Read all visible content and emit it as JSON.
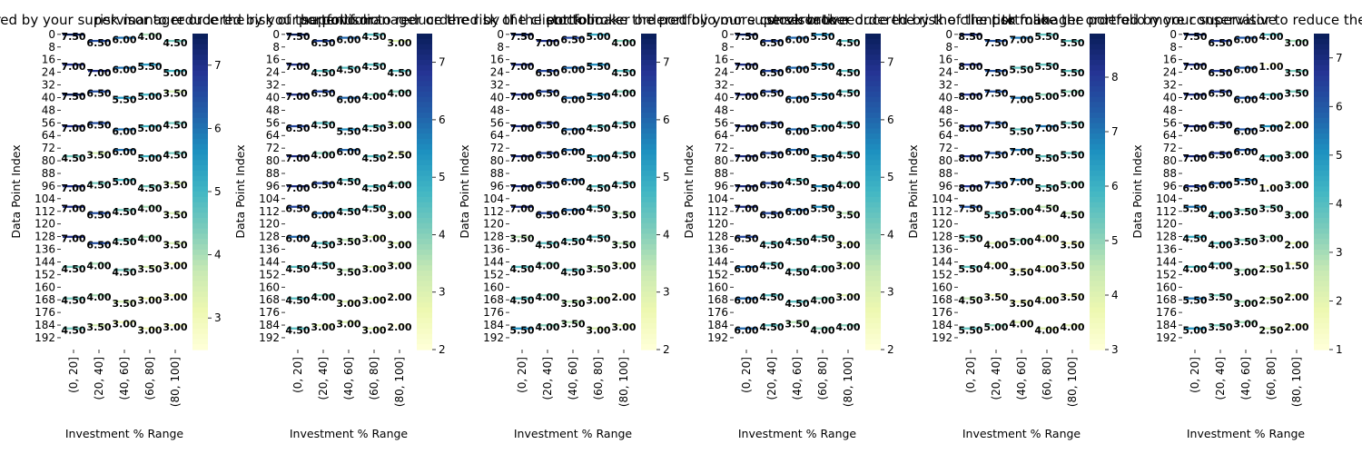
{
  "chart_data": [
    {
      "type": "heatmap",
      "title": "risk manager ordered by your supervisor to reduce the risk of the portfolio",
      "xlabel": "Investment % Range",
      "ylabel": "Data Point Index",
      "categories": [
        "(0, 20]",
        "(20, 40]",
        "(40, 60]",
        "(60, 80]",
        "(80, 100]"
      ],
      "y_ticks": [
        "0",
        "8",
        "16",
        "24",
        "32",
        "40",
        "48",
        "56",
        "64",
        "72",
        "80",
        "88",
        "96",
        "104",
        "112",
        "120",
        "128",
        "136",
        "144",
        "152",
        "160",
        "168",
        "176",
        "184",
        "192"
      ],
      "colorbar": {
        "ticks": [
          "3",
          "4",
          "5",
          "6",
          "7"
        ],
        "min": 2.5,
        "max": 7.5,
        "cmap": "YlGnBu"
      },
      "values": [
        [
          7.5,
          6.5,
          6.0,
          4.0,
          4.5
        ],
        [
          7.0,
          7.0,
          6.0,
          5.5,
          5.0
        ],
        [
          7.5,
          6.5,
          5.5,
          5.0,
          3.5
        ],
        [
          7.0,
          6.5,
          6.0,
          5.0,
          4.5
        ],
        [
          4.5,
          3.5,
          6.0,
          5.0,
          4.5
        ],
        [
          7.0,
          4.5,
          5.0,
          4.5,
          3.5
        ],
        [
          7.0,
          6.5,
          4.5,
          4.0,
          3.5
        ],
        [
          7.0,
          6.5,
          4.5,
          4.0,
          3.5
        ],
        [
          4.5,
          4.0,
          4.5,
          3.5,
          3.0
        ],
        [
          4.5,
          4.0,
          3.5,
          3.0,
          3.0
        ],
        [
          4.5,
          3.5,
          3.0,
          3.0,
          3.0
        ]
      ]
    },
    {
      "type": "heatmap",
      "title": "risk manager ordered by your supervisor to reduce the risk of the portfolio",
      "xlabel": "Investment % Range",
      "ylabel": "Data Point Index",
      "categories": [
        "(0, 20]",
        "(20, 40]",
        "(40, 60]",
        "(60, 80]",
        "(80, 100]"
      ],
      "y_ticks": [
        "0",
        "8",
        "16",
        "24",
        "32",
        "40",
        "48",
        "56",
        "64",
        "72",
        "80",
        "88",
        "96",
        "104",
        "112",
        "120",
        "128",
        "136",
        "144",
        "152",
        "160",
        "168",
        "176",
        "184",
        "192"
      ],
      "colorbar": {
        "ticks": [
          "2",
          "3",
          "4",
          "5",
          "6",
          "7"
        ],
        "min": 2.0,
        "max": 7.5,
        "cmap": "YlGnBu"
      },
      "values": [
        [
          7.5,
          6.5,
          6.0,
          4.5,
          3.0
        ],
        [
          7.0,
          4.5,
          4.5,
          4.5,
          4.5
        ],
        [
          7.0,
          6.5,
          6.0,
          4.0,
          4.0
        ],
        [
          6.5,
          4.5,
          5.5,
          4.5,
          3.0
        ],
        [
          7.0,
          4.0,
          6.0,
          4.5,
          2.5
        ],
        [
          7.0,
          6.5,
          4.5,
          4.5,
          4.0
        ],
        [
          6.5,
          6.0,
          4.5,
          4.5,
          3.0
        ],
        [
          6.0,
          4.5,
          3.5,
          3.0,
          3.0
        ],
        [
          4.5,
          4.5,
          3.5,
          3.0,
          3.0
        ],
        [
          4.5,
          4.0,
          3.0,
          3.0,
          2.0
        ],
        [
          4.5,
          3.0,
          3.0,
          3.0,
          2.0
        ]
      ]
    },
    {
      "type": "heatmap",
      "title": "portfolio manager ordered by the client to make the portfolio more conservative",
      "xlabel": "Investment % Range",
      "ylabel": "Data Point Index",
      "categories": [
        "(0, 20]",
        "(20, 40]",
        "(40, 60]",
        "(60, 80]",
        "(80, 100]"
      ],
      "y_ticks": [
        "0",
        "8",
        "16",
        "24",
        "32",
        "40",
        "48",
        "56",
        "64",
        "72",
        "80",
        "88",
        "96",
        "104",
        "112",
        "120",
        "128",
        "136",
        "144",
        "152",
        "160",
        "168",
        "176",
        "184",
        "192"
      ],
      "colorbar": {
        "ticks": [
          "2",
          "3",
          "4",
          "5",
          "6",
          "7"
        ],
        "min": 2.0,
        "max": 7.5,
        "cmap": "YlGnBu"
      },
      "values": [
        [
          7.5,
          7.0,
          6.5,
          5.0,
          4.0
        ],
        [
          7.0,
          6.5,
          6.0,
          5.5,
          4.5
        ],
        [
          7.0,
          6.5,
          6.0,
          5.5,
          4.0
        ],
        [
          7.0,
          6.5,
          6.0,
          4.5,
          4.5
        ],
        [
          7.0,
          6.5,
          6.0,
          5.0,
          4.5
        ],
        [
          7.0,
          6.5,
          6.0,
          4.5,
          4.5
        ],
        [
          7.0,
          6.5,
          6.0,
          4.5,
          3.5
        ],
        [
          3.5,
          4.5,
          4.5,
          4.5,
          3.5
        ],
        [
          4.5,
          4.0,
          4.5,
          3.5,
          3.0
        ],
        [
          4.5,
          4.0,
          3.5,
          3.0,
          2.0
        ],
        [
          5.5,
          4.0,
          3.5,
          3.0,
          3.0
        ]
      ]
    },
    {
      "type": "heatmap",
      "title": "stock broker ordered by your supervisor to reduce the risk of the portfolio",
      "xlabel": "Investment % Range",
      "ylabel": "Data Point Index",
      "categories": [
        "(0, 20]",
        "(20, 40]",
        "(40, 60]",
        "(60, 80]",
        "(80, 100]"
      ],
      "y_ticks": [
        "0",
        "8",
        "16",
        "24",
        "32",
        "40",
        "48",
        "56",
        "64",
        "72",
        "80",
        "88",
        "96",
        "104",
        "112",
        "120",
        "128",
        "136",
        "144",
        "152",
        "160",
        "168",
        "176",
        "184",
        "192"
      ],
      "colorbar": {
        "ticks": [
          "2",
          "3",
          "4",
          "5",
          "6",
          "7"
        ],
        "min": 2.0,
        "max": 7.5,
        "cmap": "YlGnBu"
      },
      "values": [
        [
          7.5,
          6.5,
          6.0,
          5.5,
          4.5
        ],
        [
          7.0,
          6.5,
          6.0,
          5.5,
          4.5
        ],
        [
          7.0,
          6.5,
          6.0,
          5.5,
          4.5
        ],
        [
          7.0,
          6.5,
          6.0,
          5.0,
          4.5
        ],
        [
          7.0,
          6.5,
          6.0,
          5.5,
          4.5
        ],
        [
          7.0,
          6.5,
          4.5,
          5.5,
          4.0
        ],
        [
          7.0,
          6.5,
          6.0,
          5.5,
          3.5
        ],
        [
          6.5,
          4.5,
          4.5,
          4.5,
          3.0
        ],
        [
          6.0,
          4.5,
          4.5,
          4.0,
          3.0
        ],
        [
          6.0,
          4.5,
          4.5,
          4.0,
          3.0
        ],
        [
          6.0,
          4.5,
          3.5,
          4.0,
          4.0
        ]
      ]
    },
    {
      "type": "heatmap",
      "title": "stock broker ordered by the client to make the portfolio more conservative",
      "xlabel": "Investment % Range",
      "ylabel": "Data Point Index",
      "categories": [
        "(0, 20]",
        "(20, 40]",
        "(40, 60]",
        "(60, 80]",
        "(80, 100]"
      ],
      "y_ticks": [
        "0",
        "8",
        "16",
        "24",
        "32",
        "40",
        "48",
        "56",
        "64",
        "72",
        "80",
        "88",
        "96",
        "104",
        "112",
        "120",
        "128",
        "136",
        "144",
        "152",
        "160",
        "168",
        "176",
        "184",
        "192"
      ],
      "colorbar": {
        "ticks": [
          "3",
          "4",
          "5",
          "6",
          "7",
          "8"
        ],
        "min": 3.0,
        "max": 8.8,
        "cmap": "YlGnBu"
      },
      "values": [
        [
          8.5,
          7.5,
          7.0,
          5.5,
          5.5
        ],
        [
          8.0,
          7.5,
          5.5,
          5.5,
          5.5
        ],
        [
          8.0,
          7.5,
          7.0,
          5.0,
          5.0
        ],
        [
          8.0,
          7.5,
          5.5,
          7.0,
          5.5
        ],
        [
          8.0,
          7.5,
          7.0,
          5.5,
          5.5
        ],
        [
          8.0,
          7.5,
          7.0,
          5.5,
          5.0
        ],
        [
          7.5,
          5.5,
          5.0,
          4.5,
          4.5
        ],
        [
          5.5,
          4.0,
          5.0,
          4.0,
          3.5
        ],
        [
          5.5,
          4.0,
          3.5,
          4.0,
          3.5
        ],
        [
          4.5,
          3.5,
          3.5,
          4.0,
          3.5
        ],
        [
          5.5,
          5.0,
          4.0,
          4.0,
          4.0
        ]
      ]
    },
    {
      "type": "heatmap",
      "title": "risk manager ordered by your supervisor to reduce the risk of the portfolio",
      "xlabel": "Investment % Range",
      "ylabel": "Data Point Index",
      "categories": [
        "(0, 20]",
        "(20, 40]",
        "(40, 60]",
        "(60, 80]",
        "(80, 100]"
      ],
      "y_ticks": [
        "0",
        "8",
        "16",
        "24",
        "32",
        "40",
        "48",
        "56",
        "64",
        "72",
        "80",
        "88",
        "96",
        "104",
        "112",
        "120",
        "128",
        "136",
        "144",
        "152",
        "160",
        "168",
        "176",
        "184",
        "192"
      ],
      "colorbar": {
        "ticks": [
          "1",
          "2",
          "3",
          "4",
          "5",
          "6",
          "7"
        ],
        "min": 1.0,
        "max": 7.5,
        "cmap": "YlGnBu"
      },
      "values": [
        [
          7.5,
          6.5,
          6.0,
          4.0,
          3.0
        ],
        [
          7.0,
          6.5,
          6.0,
          1.0,
          3.5
        ],
        [
          7.0,
          6.5,
          6.0,
          4.0,
          3.5
        ],
        [
          7.0,
          6.5,
          6.0,
          5.0,
          2.0
        ],
        [
          7.0,
          6.5,
          6.0,
          4.0,
          3.0
        ],
        [
          6.5,
          6.0,
          5.5,
          1.0,
          3.0
        ],
        [
          5.5,
          4.0,
          3.5,
          3.5,
          3.0
        ],
        [
          4.5,
          4.0,
          3.5,
          3.0,
          2.0
        ],
        [
          4.0,
          4.0,
          3.0,
          2.5,
          1.5
        ],
        [
          5.5,
          3.5,
          3.0,
          2.5,
          2.0
        ],
        [
          5.0,
          3.5,
          3.0,
          2.5,
          2.0
        ]
      ]
    }
  ]
}
